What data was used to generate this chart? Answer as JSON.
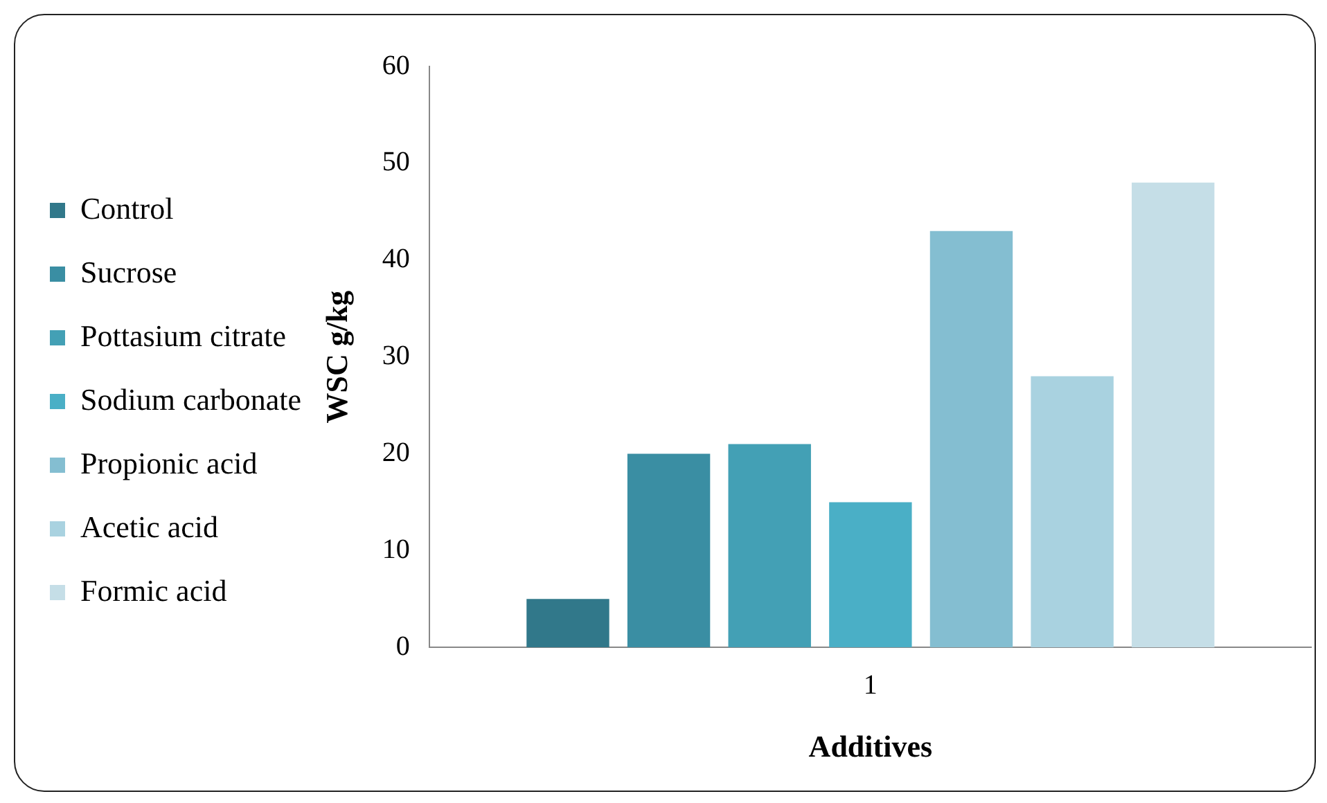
{
  "chart_data": {
    "type": "bar",
    "xlabel": "Additives",
    "ylabel": "WSC g/kg",
    "categories": [
      "1"
    ],
    "series": [
      {
        "name": "Control",
        "color": "#31788a",
        "values": [
          5
        ]
      },
      {
        "name": "Sucrose",
        "color": "#3a8ea3",
        "values": [
          20
        ]
      },
      {
        "name": "Pottasium citrate",
        "color": "#43a0b5",
        "values": [
          21
        ]
      },
      {
        "name": "Sodium carbonate",
        "color": "#4aafc6",
        "values": [
          15
        ]
      },
      {
        "name": "Propionic acid",
        "color": "#84bed1",
        "values": [
          43
        ]
      },
      {
        "name": "Acetic acid",
        "color": "#a9d2e0",
        "values": [
          28
        ]
      },
      {
        "name": "Formic acid",
        "color": "#c5dee7",
        "values": [
          48
        ]
      }
    ],
    "ylim": [
      0,
      60
    ],
    "yticks": [
      0,
      10,
      20,
      30,
      40,
      50,
      60
    ],
    "grid": false,
    "legend": "left"
  }
}
